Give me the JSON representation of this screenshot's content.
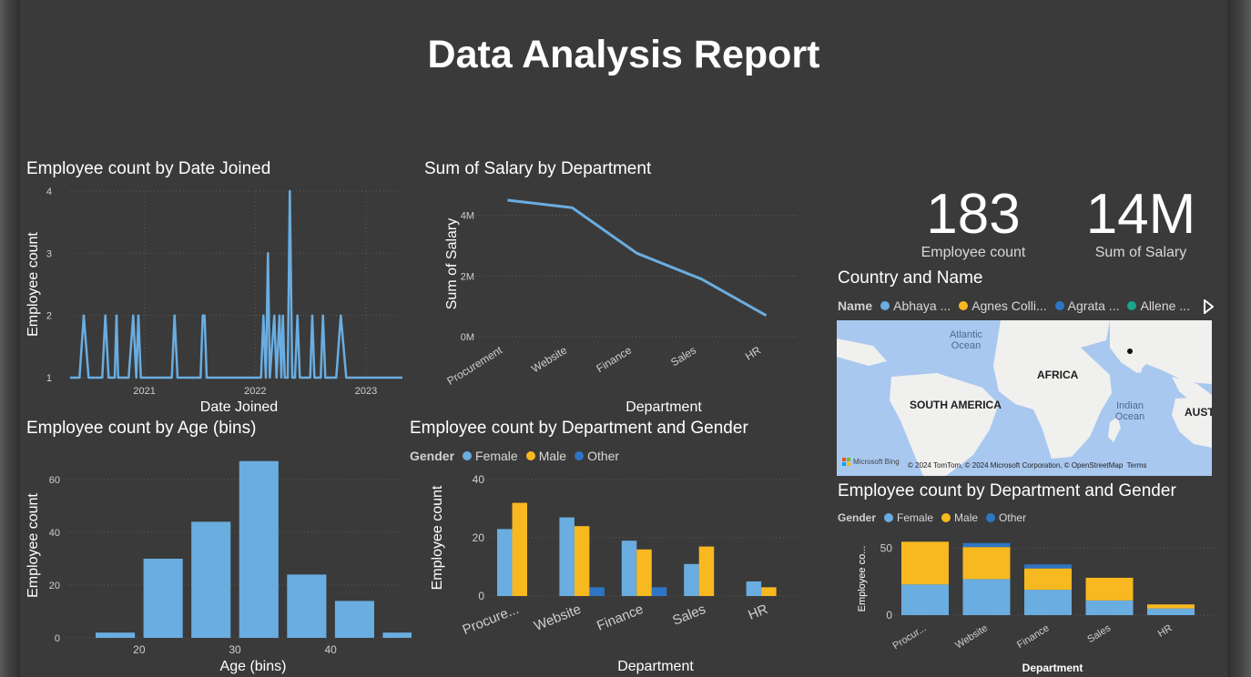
{
  "report": {
    "title": "Data Analysis Report"
  },
  "colors": {
    "female": "#6aade0",
    "male": "#f8b81f",
    "other": "#2e75c6",
    "line": "#6aade0"
  },
  "kpis": [
    {
      "value": "183",
      "label": "Employee count"
    },
    {
      "value": "14M",
      "label": "Sum of Salary"
    }
  ],
  "map": {
    "title": "Country and Name",
    "legend_title": "Name",
    "legend_items": [
      {
        "label": "Abhaya ...",
        "color": "#6aade0"
      },
      {
        "label": "Agnes Colli...",
        "color": "#f8b81f"
      },
      {
        "label": "Agrata ...",
        "color": "#2e75c6"
      },
      {
        "label": "Allene ...",
        "color": "#1aa58c"
      }
    ],
    "labels": {
      "atlantic": "Atlantic\nOcean",
      "africa": "AFRICA",
      "south_america": "SOUTH AMERICA",
      "indian": "Indian\nOcean",
      "aust": "AUSTI"
    },
    "bing": "Microsoft Bing",
    "attribution": "© 2024 TomTom, © 2024 Microsoft Corporation, © OpenStreetMap  Terms",
    "next_icon": "triangle-right-icon"
  },
  "chart_data": [
    {
      "id": "date_joined",
      "type": "line",
      "title": "Employee count by Date Joined",
      "xlabel": "Date Joined",
      "ylabel": "Employee count",
      "x_ticks": [
        "2021",
        "2022",
        "2023"
      ],
      "y_ticks": [
        1,
        2,
        3,
        4
      ],
      "ylim": [
        1,
        4
      ],
      "xlim": [
        "2020-05-01",
        "2023-05-01"
      ],
      "points": [
        [
          "2020-05-01",
          1
        ],
        [
          "2020-06-01",
          1
        ],
        [
          "2020-06-15",
          2
        ],
        [
          "2020-07-01",
          1
        ],
        [
          "2020-08-15",
          1
        ],
        [
          "2020-08-25",
          2
        ],
        [
          "2020-09-05",
          1
        ],
        [
          "2020-09-25",
          1
        ],
        [
          "2020-10-01",
          2
        ],
        [
          "2020-10-06",
          1
        ],
        [
          "2020-11-10",
          1
        ],
        [
          "2020-11-25",
          2
        ],
        [
          "2020-12-05",
          1
        ],
        [
          "2020-12-12",
          2
        ],
        [
          "2020-12-20",
          1
        ],
        [
          "2021-04-01",
          1
        ],
        [
          "2021-04-10",
          2
        ],
        [
          "2021-04-20",
          1
        ],
        [
          "2021-07-05",
          1
        ],
        [
          "2021-07-12",
          2
        ],
        [
          "2021-07-18",
          2
        ],
        [
          "2021-07-25",
          1
        ],
        [
          "2022-01-20",
          1
        ],
        [
          "2022-01-28",
          2
        ],
        [
          "2022-02-05",
          1
        ],
        [
          "2022-02-12",
          3
        ],
        [
          "2022-02-18",
          1
        ],
        [
          "2022-03-05",
          2
        ],
        [
          "2022-03-12",
          1
        ],
        [
          "2022-03-22",
          2
        ],
        [
          "2022-03-28",
          1
        ],
        [
          "2022-04-02",
          2
        ],
        [
          "2022-04-08",
          1
        ],
        [
          "2022-04-18",
          1
        ],
        [
          "2022-04-25",
          4
        ],
        [
          "2022-05-03",
          1
        ],
        [
          "2022-05-12",
          1
        ],
        [
          "2022-05-20",
          2
        ],
        [
          "2022-05-28",
          1
        ],
        [
          "2022-07-01",
          1
        ],
        [
          "2022-07-08",
          2
        ],
        [
          "2022-07-15",
          1
        ],
        [
          "2022-08-05",
          1
        ],
        [
          "2022-08-12",
          2
        ],
        [
          "2022-08-20",
          1
        ],
        [
          "2022-09-25",
          1
        ],
        [
          "2022-10-10",
          2
        ],
        [
          "2022-10-28",
          1
        ],
        [
          "2023-05-01",
          1
        ]
      ]
    },
    {
      "id": "salary_by_dept",
      "type": "line",
      "title": "Sum of Salary by Department",
      "xlabel": "Department",
      "ylabel": "Sum of Salary",
      "categories": [
        "Procurement",
        "Website",
        "Finance",
        "Sales",
        "HR"
      ],
      "values": [
        4.5,
        4.25,
        2.75,
        1.9,
        0.7
      ],
      "unit": "M",
      "y_ticks": [
        "0M",
        "2M",
        "4M"
      ],
      "ylim": [
        0,
        4.8
      ]
    },
    {
      "id": "age_bins",
      "type": "bar",
      "title": "Employee count by Age (bins)",
      "xlabel": "Age (bins)",
      "ylabel": "Employee count",
      "categories": [
        15,
        20,
        25,
        30,
        35,
        40,
        45
      ],
      "values": [
        2,
        30,
        44,
        67,
        24,
        14,
        2
      ],
      "x_ticks": [
        20,
        30,
        40
      ],
      "y_ticks": [
        0,
        20,
        40,
        60
      ],
      "ylim": [
        0,
        70
      ]
    },
    {
      "id": "dept_gender_clustered",
      "type": "bar",
      "title": "Employee count by Department and Gender",
      "xlabel": "Department",
      "ylabel": "Employee count",
      "legend_title": "Gender",
      "categories": [
        "Procure...",
        "Website",
        "Finance",
        "Sales",
        "HR"
      ],
      "series": [
        {
          "name": "Female",
          "values": [
            23,
            27,
            19,
            11,
            5
          ]
        },
        {
          "name": "Male",
          "values": [
            32,
            24,
            16,
            17,
            3
          ]
        },
        {
          "name": "Other",
          "values": [
            0,
            3,
            3,
            0,
            0
          ]
        }
      ],
      "y_ticks": [
        0,
        20,
        40
      ],
      "ylim": [
        0,
        40
      ]
    },
    {
      "id": "dept_gender_stacked",
      "type": "bar",
      "stacked": true,
      "title": "Employee count by Department and Gender",
      "xlabel": "Department",
      "ylabel": "Employee co...",
      "legend_title": "Gender",
      "categories": [
        "Procur...",
        "Website",
        "Finance",
        "Sales",
        "HR"
      ],
      "series": [
        {
          "name": "Female",
          "values": [
            23,
            27,
            19,
            11,
            5
          ]
        },
        {
          "name": "Male",
          "values": [
            32,
            24,
            16,
            17,
            3
          ]
        },
        {
          "name": "Other",
          "values": [
            0,
            3,
            3,
            0,
            0
          ]
        }
      ],
      "y_ticks": [
        0,
        50
      ],
      "ylim": [
        0,
        60
      ]
    }
  ]
}
